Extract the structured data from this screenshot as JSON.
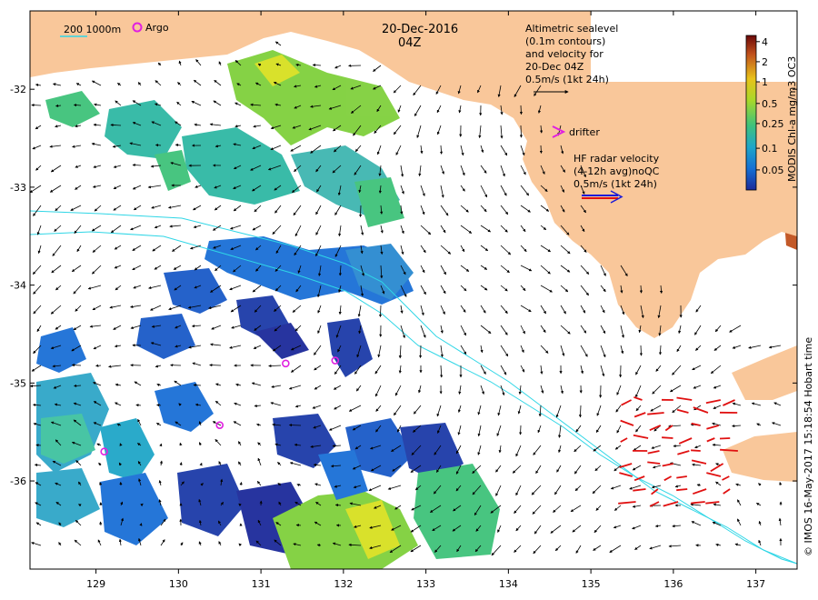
{
  "header": {
    "date": "20-Dec-2016",
    "time": "04Z"
  },
  "legend": {
    "isobath_label": "200  1000m",
    "argo_label": "Argo",
    "drifter_label": "drifter",
    "altimetry_lines": [
      "Altimetric sealevel",
      "(0.1m contours)",
      "and velocity for",
      "20-Dec 04Z",
      "0.5m/s (1kt 24h)"
    ],
    "hf_lines": [
      "HF radar velocity",
      "(4-12h avg)noQC",
      "0.5m/s (1kt 24h)"
    ]
  },
  "colorbar": {
    "title": "MODIS Chl-a mg/m3 OC3",
    "tick_labels": [
      "4",
      "2",
      "1",
      "0.5",
      "0.25",
      "0.1",
      "0.05"
    ],
    "colors": [
      "#7a0a0a",
      "#c0501c",
      "#e8c21a",
      "#9cd52a",
      "#3fc27a",
      "#1fa6c8",
      "#1570d4",
      "#1c2a9a"
    ]
  },
  "credit": "© IMOS 16-May-2017 15:18:54 Hobart time",
  "axes": {
    "x_ticks": [
      "129",
      "130",
      "131",
      "132",
      "133",
      "134",
      "135",
      "136",
      "137"
    ],
    "y_ticks": [
      "-32",
      "-33",
      "-34",
      "-35",
      "-36"
    ],
    "lon_range": [
      128.2,
      137.5
    ],
    "lat_range": [
      -36.9,
      -31.2
    ]
  },
  "argo_floats": [
    {
      "lon": 129.1,
      "lat": -35.7
    },
    {
      "lon": 130.5,
      "lat": -35.43
    },
    {
      "lon": 131.3,
      "lat": -34.8
    },
    {
      "lon": 131.9,
      "lat": -34.77
    }
  ],
  "colors": {
    "land": "#f9c79a",
    "isobath": "#2fd6e6",
    "hf_arrow": "#e01010",
    "argo": "#e020e0"
  }
}
